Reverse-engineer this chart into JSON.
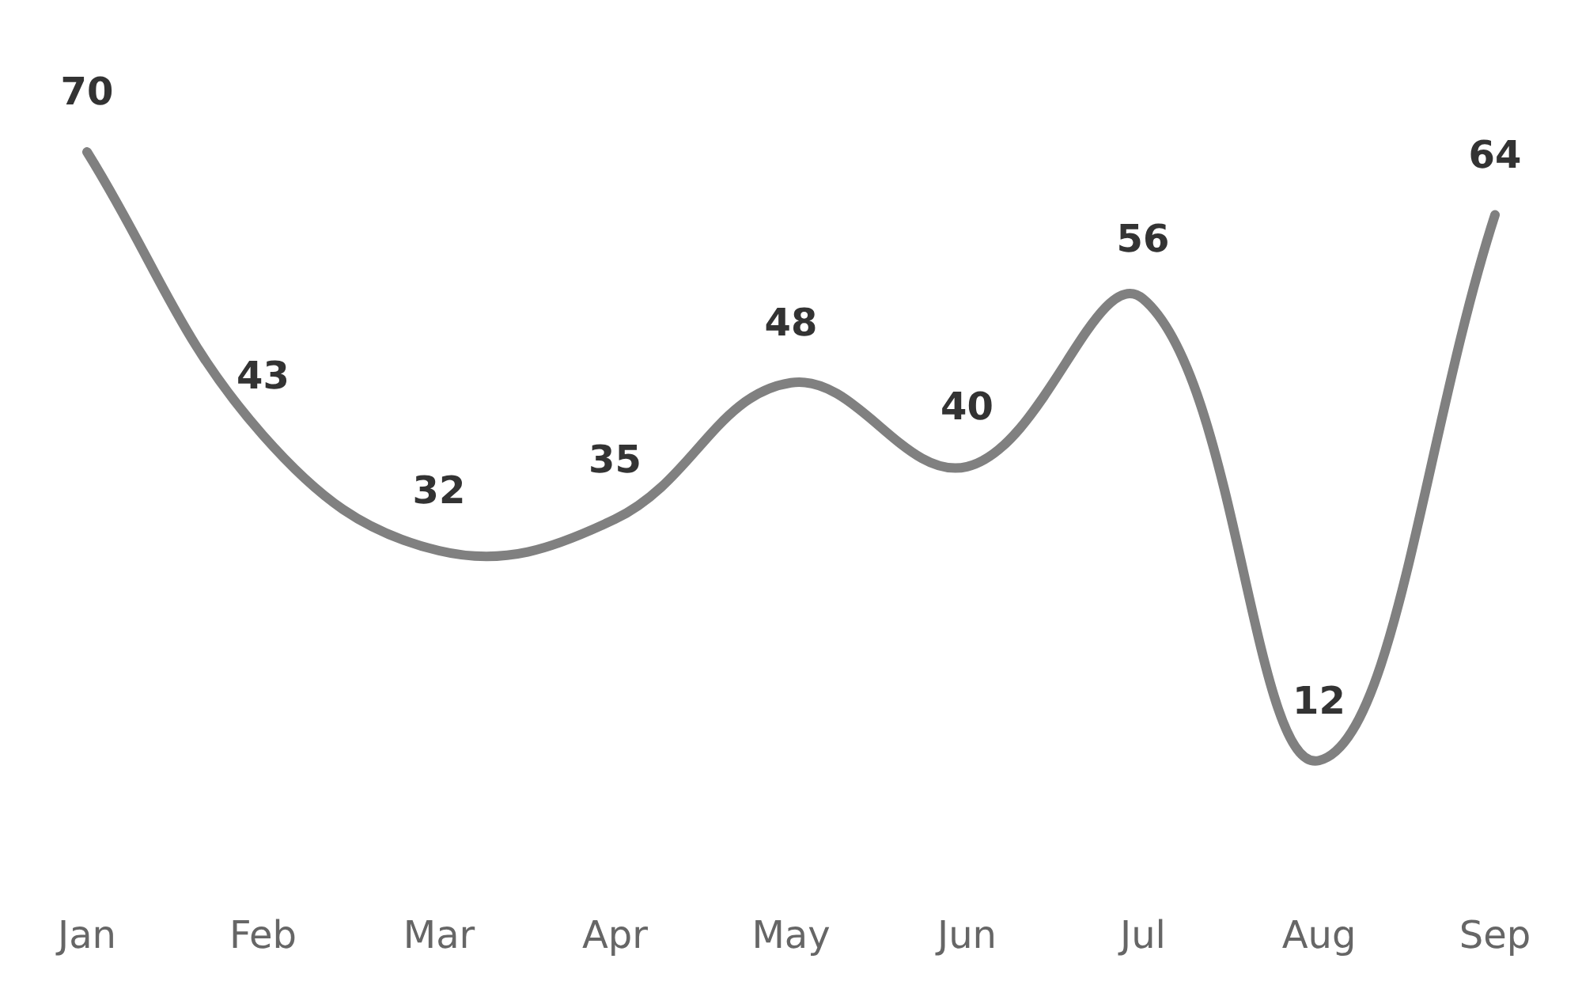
{
  "chart_data": {
    "type": "line",
    "categories": [
      "Jan",
      "Feb",
      "Mar",
      "Apr",
      "May",
      "Jun",
      "Jul",
      "Aug",
      "Sep"
    ],
    "values": [
      70,
      43,
      32,
      35,
      48,
      40,
      56,
      12,
      64
    ],
    "color": "#808080",
    "data_labels": true,
    "marker": "none",
    "grid": false
  }
}
